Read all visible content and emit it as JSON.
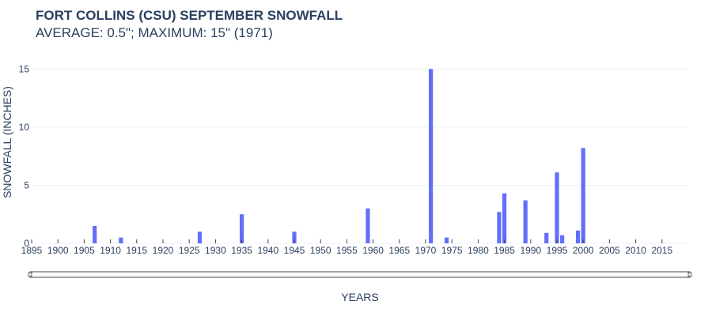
{
  "colors": {
    "bar": "#636efa",
    "grid": "#ebf0f8",
    "text": "#2a3f5f"
  },
  "chart_data": {
    "type": "bar",
    "title": "FORT COLLINS (CSU) SEPTEMBER SNOWFALL",
    "subtitle": "AVERAGE: 0.5\"; MAXIMUM: 15\" (1971)",
    "xlabel": "YEARS",
    "ylabel": "SNOWFALL (INCHES)",
    "xlim": [
      1895,
      2020
    ],
    "ylim": [
      0,
      15.5
    ],
    "xticks": [
      "1895",
      "1900",
      "1905",
      "1910",
      "1915",
      "1920",
      "1925",
      "1930",
      "1935",
      "1940",
      "1945",
      "1950",
      "1955",
      "1960",
      "1965",
      "1970",
      "1975",
      "1980",
      "1985",
      "1990",
      "1995",
      "2000",
      "2005",
      "2010",
      "2015"
    ],
    "yticks": [
      "0",
      "5",
      "10",
      "15"
    ],
    "grid": true,
    "legend": "none",
    "x": [
      1907,
      1912,
      1927,
      1935,
      1945,
      1959,
      1971,
      1974,
      1984,
      1985,
      1989,
      1993,
      1995,
      1996,
      1999,
      2000
    ],
    "values": [
      1.5,
      0.5,
      1.0,
      2.5,
      1.0,
      3.0,
      15.0,
      0.5,
      2.7,
      4.3,
      3.7,
      0.9,
      6.1,
      0.7,
      1.1,
      8.2
    ]
  }
}
